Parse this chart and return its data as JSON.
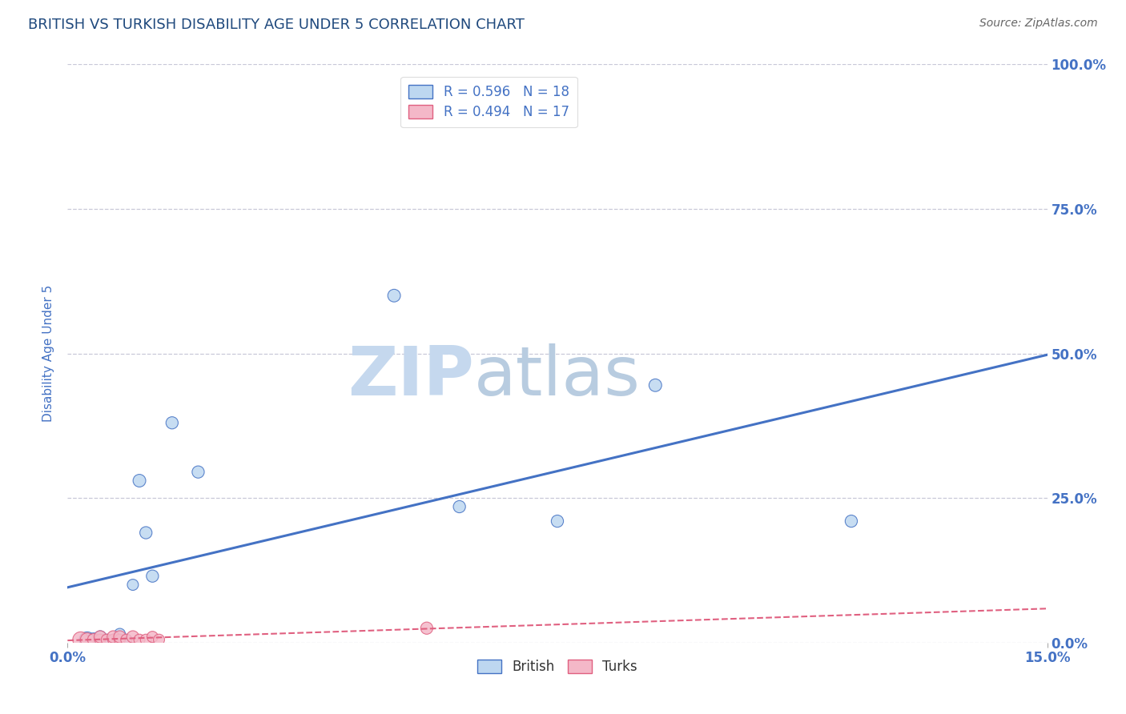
{
  "title": "BRITISH VS TURKISH DISABILITY AGE UNDER 5 CORRELATION CHART",
  "source": "Source: ZipAtlas.com",
  "ylabel": "Disability Age Under 5",
  "xlabel": "",
  "xlim": [
    0.0,
    0.15
  ],
  "ylim": [
    0.0,
    1.0
  ],
  "ytick_positions": [
    0.0,
    0.25,
    0.5,
    0.75,
    1.0
  ],
  "ytick_labels": [
    "0.0%",
    "25.0%",
    "50.0%",
    "75.0%",
    "100.0%"
  ],
  "background_color": "#ffffff",
  "grid_color": "#c8c8d8",
  "british_color": "#bdd7f0",
  "turks_color": "#f4b8c8",
  "british_line_color": "#4472c4",
  "turks_line_color": "#e06080",
  "title_color": "#1f497d",
  "axis_label_color": "#4472c4",
  "tick_color": "#4472c4",
  "legend_R_color": "#4472c4",
  "british_R": "0.596",
  "british_N": "18",
  "turks_R": "0.494",
  "turks_N": "17",
  "british_x": [
    0.003,
    0.004,
    0.005,
    0.006,
    0.007,
    0.008,
    0.009,
    0.01,
    0.011,
    0.012,
    0.013,
    0.016,
    0.02,
    0.05,
    0.06,
    0.075,
    0.09,
    0.12
  ],
  "british_y": [
    0.005,
    0.005,
    0.01,
    0.005,
    0.005,
    0.015,
    0.005,
    0.1,
    0.28,
    0.19,
    0.115,
    0.38,
    0.295,
    0.6,
    0.235,
    0.21,
    0.445,
    0.21
  ],
  "turks_x": [
    0.002,
    0.003,
    0.004,
    0.005,
    0.005,
    0.006,
    0.007,
    0.007,
    0.008,
    0.008,
    0.009,
    0.01,
    0.011,
    0.012,
    0.013,
    0.014,
    0.055
  ],
  "turks_y": [
    0.005,
    0.005,
    0.005,
    0.005,
    0.01,
    0.005,
    0.005,
    0.01,
    0.005,
    0.01,
    0.005,
    0.01,
    0.005,
    0.005,
    0.01,
    0.005,
    0.025
  ],
  "british_sizes": [
    200,
    150,
    120,
    100,
    100,
    100,
    100,
    100,
    130,
    120,
    120,
    120,
    120,
    130,
    120,
    120,
    130,
    120
  ],
  "turks_sizes": [
    200,
    150,
    120,
    100,
    120,
    100,
    100,
    120,
    100,
    120,
    100,
    120,
    100,
    100,
    100,
    100,
    120
  ],
  "watermark_zip": "ZIP",
  "watermark_atlas": "atlas",
  "watermark_color": "#dde8f5",
  "watermark_color2": "#c8d8e8"
}
